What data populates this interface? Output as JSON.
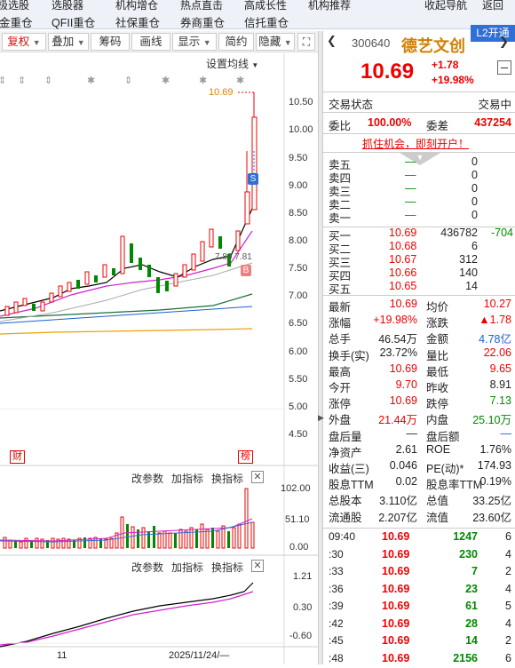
{
  "top_nav_row1": [
    "极选股",
    "选股器",
    "机构增仓",
    "热点直击",
    "高成长性",
    "机构推荐",
    "收起导航",
    "返回"
  ],
  "top_nav_row2": [
    "金重仓",
    "QFII重仓",
    "社保重仓",
    "券商重仓",
    "信托重仓"
  ],
  "l2_button": "L2开通",
  "toolbar": {
    "fuquan": "复权",
    "diejia": "叠加",
    "chouma": "筹码",
    "huaxian": "画线",
    "xianshi": "显示",
    "jianyue": "简约",
    "yincang": "隐藏"
  },
  "chart_header": {
    "ma_settings": "设置均线",
    "price_label": "10.69",
    "b_label": "7.80 7.81",
    "s_badge": "S",
    "b_badge": "B",
    "cai_badge": "财",
    "bang_badge": "榜"
  },
  "price_axis": [
    "10.50",
    "10.00",
    "9.50",
    "9.00",
    "8.50",
    "8.00",
    "7.50",
    "7.00",
    "6.50",
    "6.00",
    "5.50",
    "5.00",
    "4.50"
  ],
  "volume_panel": {
    "buttons": [
      "改参数",
      "加指标",
      "换指标"
    ],
    "axis": [
      "102.00",
      "51.10",
      "0.00"
    ]
  },
  "macd_panel": {
    "buttons": [
      "改参数",
      "加指标",
      "换指标"
    ],
    "axis": [
      "1.21",
      "0.30",
      "-0.60"
    ]
  },
  "date_axis": {
    "left": "11",
    "date": "2025/11/24/—"
  },
  "stock": {
    "code": "300640",
    "name": "德艺文创",
    "price": "10.69",
    "change": "+1.78",
    "change_pct": "+19.98%"
  },
  "status": {
    "label": "交易状态",
    "value": "交易中"
  },
  "weibi": {
    "label1": "委比",
    "value1": "100.00%",
    "label2": "委差",
    "value2": "437254"
  },
  "promo": "抓住机会，即刻开户！",
  "sell_orders": [
    {
      "label": "卖五",
      "price": "—",
      "vol": "0"
    },
    {
      "label": "卖四",
      "price": "—",
      "vol": "0"
    },
    {
      "label": "卖三",
      "price": "—",
      "vol": "0"
    },
    {
      "label": "卖二",
      "price": "—",
      "vol": "0"
    },
    {
      "label": "卖一",
      "price": "—",
      "vol": "0"
    }
  ],
  "buy_orders": [
    {
      "label": "买一",
      "price": "10.69",
      "vol": "436782",
      "chg": "-704"
    },
    {
      "label": "买二",
      "price": "10.68",
      "vol": "6",
      "chg": ""
    },
    {
      "label": "买三",
      "price": "10.67",
      "vol": "312",
      "chg": ""
    },
    {
      "label": "买四",
      "price": "10.66",
      "vol": "140",
      "chg": ""
    },
    {
      "label": "买五",
      "price": "10.65",
      "vol": "14",
      "chg": ""
    }
  ],
  "quote": [
    {
      "k1": "最新",
      "v1": "10.69",
      "c1": "red",
      "k2": "均价",
      "v2": "10.27",
      "c2": "red"
    },
    {
      "k1": "涨幅",
      "v1": "+19.98%",
      "c1": "red",
      "k2": "涨跌",
      "v2": "▲1.78",
      "c2": "red"
    },
    {
      "k1": "总手",
      "v1": "46.54万",
      "c1": "",
      "k2": "金额",
      "v2": "4.78亿",
      "c2": "blue"
    },
    {
      "k1": "换手(实)",
      "v1": "23.72%",
      "c1": "",
      "k2": "量比",
      "v2": "22.06",
      "c2": "red"
    },
    {
      "k1": "最高",
      "v1": "10.69",
      "c1": "red",
      "k2": "最低",
      "v2": "9.65",
      "c2": "red"
    },
    {
      "k1": "今开",
      "v1": "9.70",
      "c1": "red",
      "k2": "昨收",
      "v2": "8.91",
      "c2": ""
    },
    {
      "k1": "涨停",
      "v1": "10.69",
      "c1": "red",
      "k2": "跌停",
      "v2": "7.13",
      "c2": "green"
    },
    {
      "k1": "外盘",
      "v1": "21.44万",
      "c1": "red",
      "k2": "内盘",
      "v2": "25.10万",
      "c2": "green"
    },
    {
      "k1": "盘后量",
      "v1": "—",
      "c1": "",
      "k2": "盘后额",
      "v2": "—",
      "c2": "blue"
    },
    {
      "k1": "净资产",
      "v1": "2.61",
      "c1": "",
      "k2": "ROE",
      "v2": "1.76%",
      "c2": ""
    },
    {
      "k1": "收益(三)",
      "v1": "0.046",
      "c1": "",
      "k2": "PE(动)*",
      "v2": "174.93",
      "c2": ""
    },
    {
      "k1": "股息TTM",
      "v1": "0.02",
      "c1": "",
      "k2": "股息率TTM",
      "v2": "0.19%",
      "c2": ""
    },
    {
      "k1": "总股本",
      "v1": "3.110亿",
      "c1": "",
      "k2": "总值",
      "v2": "33.25亿",
      "c2": ""
    },
    {
      "k1": "流通股",
      "v1": "2.207亿",
      "c1": "",
      "k2": "流值",
      "v2": "23.60亿",
      "c2": ""
    }
  ],
  "ticks": [
    {
      "time": "09:40",
      "price": "10.69",
      "vol": "1247",
      "n": "6"
    },
    {
      "time": ":30",
      "price": "10.69",
      "vol": "230",
      "n": "4"
    },
    {
      "time": ":33",
      "price": "10.69",
      "vol": "7",
      "n": "2"
    },
    {
      "time": ":36",
      "price": "10.69",
      "vol": "23",
      "n": "4"
    },
    {
      "time": ":39",
      "price": "10.69",
      "vol": "61",
      "n": "5"
    },
    {
      "time": ":42",
      "price": "10.69",
      "vol": "28",
      "n": "4"
    },
    {
      "time": ":45",
      "price": "10.69",
      "vol": "14",
      "n": "2"
    },
    {
      "time": ":48",
      "price": "10.69",
      "vol": "2156",
      "n": "6"
    }
  ]
}
